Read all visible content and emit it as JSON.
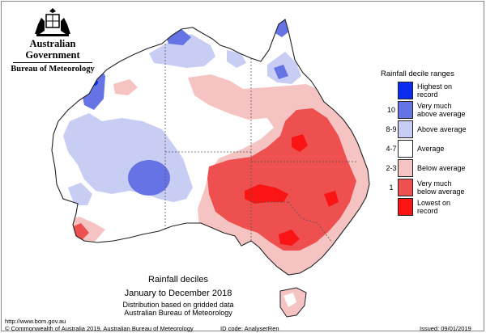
{
  "logo": {
    "government": "Australian Government",
    "bureau": "Bureau of Meteorology"
  },
  "legend": {
    "title": "Rainfall decile ranges",
    "items": [
      {
        "range": "",
        "label_lines": [
          "Highest on",
          "record"
        ],
        "color": "#0b2cf0"
      },
      {
        "range": "10",
        "label_lines": [
          "Very much",
          "above average"
        ],
        "color": "#6673e4"
      },
      {
        "range": "8-9",
        "label_lines": [
          "Above average"
        ],
        "color": "#c8cdf4"
      },
      {
        "range": "4-7",
        "label_lines": [
          "Average"
        ],
        "color": "#ffffff"
      },
      {
        "range": "2-3",
        "label_lines": [
          "Below average"
        ],
        "color": "#f6c3c3"
      },
      {
        "range": "1",
        "label_lines": [
          "Very much",
          "below average"
        ],
        "color": "#ee5050"
      },
      {
        "range": "",
        "label_lines": [
          "Lowest on",
          "record"
        ],
        "color": "#fa1414"
      }
    ]
  },
  "caption": {
    "title": "Rainfall deciles",
    "period": "January to December 2018",
    "subtitle1": "Distribution based on gridded data",
    "subtitle2": "Australian Bureau of Meteorology"
  },
  "footer": {
    "url": "http://www.bom.gov.au",
    "copyright": "© Commonwealth of Australia 2019, Australian Bureau of Meteorology",
    "id_code": "ID code: AnalyserRen",
    "issued": "Issued: 09/01/2019"
  }
}
